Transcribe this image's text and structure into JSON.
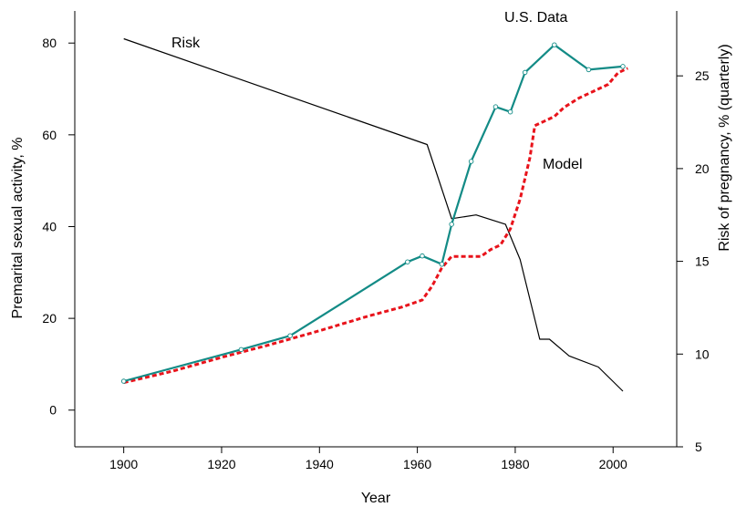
{
  "chart_data": {
    "type": "line",
    "title": "",
    "xlabel": "Year",
    "ylabel": "Premarital sexual activity, %",
    "y2label": "Risk of pregnancy, % (quarterly)",
    "xlim": [
      1890,
      2013
    ],
    "ylim": [
      -8,
      87
    ],
    "y2lim": [
      5,
      28.5
    ],
    "xticks": [
      1900,
      1920,
      1940,
      1960,
      1980,
      2000
    ],
    "yticks": [
      0,
      20,
      40,
      60,
      80
    ],
    "y2ticks": [
      5,
      10,
      15,
      20,
      25
    ],
    "grid": false,
    "annotations": [
      "U.S. Data",
      "Risk",
      "Model"
    ],
    "colors": {
      "us_data": "#138b86",
      "model": "#e8131b",
      "risk": "#000000"
    },
    "series": [
      {
        "name": "U.S. Data",
        "axis": "left",
        "markers": true,
        "x": [
          1900,
          1924,
          1934,
          1958,
          1961,
          1965,
          1967,
          1971,
          1976,
          1979,
          1982,
          1988,
          1995,
          2002
        ],
        "y": [
          6.3,
          13.2,
          16.2,
          32.3,
          33.6,
          31.8,
          40.5,
          54.2,
          66.1,
          65.0,
          73.6,
          79.6,
          74.2,
          74.9
        ]
      },
      {
        "name": "Model",
        "axis": "left",
        "style": "dashed",
        "x": [
          1900,
          1910,
          1920,
          1930,
          1940,
          1950,
          1957,
          1961,
          1963,
          1965,
          1967,
          1970,
          1973,
          1975,
          1977,
          1979,
          1981,
          1983,
          1984,
          1986,
          1988,
          1990,
          1993,
          1996,
          1999,
          2001,
          2003
        ],
        "y": [
          6.0,
          8.5,
          11.5,
          14.3,
          17.3,
          20.5,
          22.5,
          24.0,
          27.0,
          31.0,
          33.5,
          33.5,
          33.5,
          35.0,
          36.0,
          39.5,
          46.0,
          55.0,
          62.0,
          63.0,
          64.0,
          66.0,
          68.0,
          69.5,
          71.0,
          73.5,
          74.5
        ]
      },
      {
        "name": "Risk",
        "axis": "right",
        "x": [
          1900,
          1962,
          1967,
          1972,
          1978,
          1981,
          1985,
          1987,
          1991,
          1997,
          2002
        ],
        "y": [
          27.0,
          21.3,
          17.3,
          17.5,
          17.0,
          15.1,
          10.8,
          10.8,
          9.9,
          9.3,
          8.0
        ]
      }
    ]
  }
}
